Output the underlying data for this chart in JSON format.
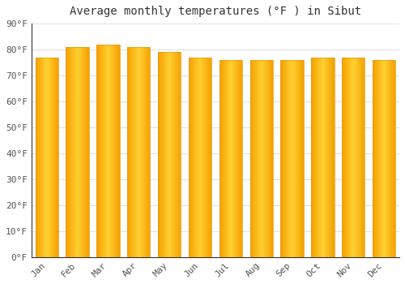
{
  "title": "Average monthly temperatures (°F ) in Sibut",
  "months": [
    "Jan",
    "Feb",
    "Mar",
    "Apr",
    "May",
    "Jun",
    "Jul",
    "Aug",
    "Sep",
    "Oct",
    "Nov",
    "Dec"
  ],
  "values": [
    77,
    81,
    82,
    81,
    79,
    77,
    76,
    76,
    76,
    77,
    77,
    76
  ],
  "bar_edge_color": "#F5A623",
  "bar_center_color": "#FFD966",
  "bar_outer_color": "#F5A000",
  "background_color": "#FFFFFF",
  "grid_color": "#E0E0E0",
  "ylim": [
    0,
    90
  ],
  "yticks": [
    0,
    10,
    20,
    30,
    40,
    50,
    60,
    70,
    80,
    90
  ],
  "ytick_labels": [
    "0°F",
    "10°F",
    "20°F",
    "30°F",
    "40°F",
    "50°F",
    "60°F",
    "70°F",
    "80°F",
    "90°F"
  ],
  "title_fontsize": 10,
  "tick_fontsize": 8,
  "bar_width": 0.75,
  "title_font_family": "monospace",
  "spine_color": "#333333"
}
